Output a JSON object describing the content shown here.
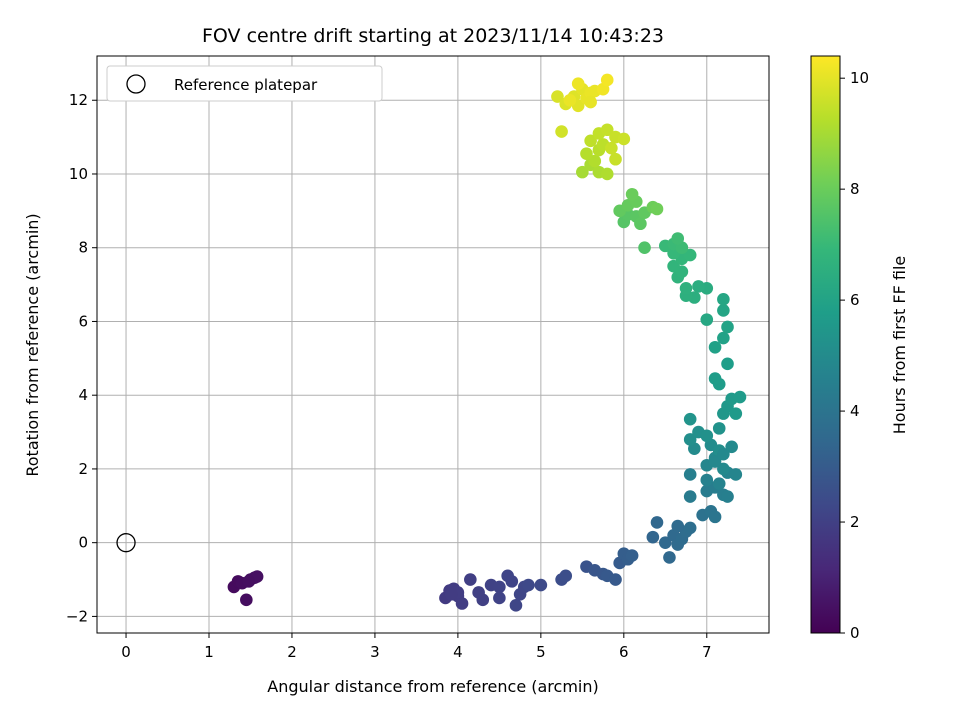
{
  "chart_data": {
    "type": "scatter",
    "title": "FOV centre drift starting at 2023/11/14 10:43:23",
    "xlabel": "Angular distance from reference (arcmin)",
    "ylabel": "Rotation from reference (arcmin)",
    "xlim": [
      -0.35,
      7.75
    ],
    "ylim": [
      -2.45,
      13.2
    ],
    "xticks": [
      0,
      1,
      2,
      3,
      4,
      5,
      6,
      7
    ],
    "yticks": [
      -2,
      0,
      2,
      4,
      6,
      8,
      10,
      12
    ],
    "grid": true,
    "legend": {
      "position": "upper-left",
      "entries": [
        {
          "label": "Reference platepar",
          "marker": "open-circle"
        }
      ]
    },
    "reference_point": {
      "x": 0,
      "y": 0
    },
    "colorbar": {
      "label": "Hours from first FF file",
      "range": [
        0,
        10.4
      ],
      "ticks": [
        0,
        2,
        4,
        6,
        8,
        10
      ],
      "colormap": "viridis",
      "stops": [
        "#440154",
        "#482878",
        "#3e4989",
        "#31688e",
        "#26828e",
        "#1f9e89",
        "#35b779",
        "#6ece58",
        "#b5de2b",
        "#fde725"
      ]
    },
    "points": [
      {
        "x": 1.3,
        "y": -1.2,
        "c": 0.3
      },
      {
        "x": 1.35,
        "y": -1.05,
        "c": 0.3
      },
      {
        "x": 1.4,
        "y": -1.1,
        "c": 0.35
      },
      {
        "x": 1.45,
        "y": -1.55,
        "c": 0.35
      },
      {
        "x": 1.5,
        "y": -1.0,
        "c": 0.4
      },
      {
        "x": 1.55,
        "y": -0.95,
        "c": 0.4
      },
      {
        "x": 1.58,
        "y": -0.92,
        "c": 0.45
      },
      {
        "x": 1.48,
        "y": -1.05,
        "c": 0.4
      },
      {
        "x": 3.85,
        "y": -1.5,
        "c": 1.8
      },
      {
        "x": 3.9,
        "y": -1.3,
        "c": 1.8
      },
      {
        "x": 3.95,
        "y": -1.25,
        "c": 1.85
      },
      {
        "x": 4.0,
        "y": -1.45,
        "c": 1.85
      },
      {
        "x": 4.05,
        "y": -1.65,
        "c": 1.9
      },
      {
        "x": 4.0,
        "y": -1.35,
        "c": 1.9
      },
      {
        "x": 3.92,
        "y": -1.4,
        "c": 1.85
      },
      {
        "x": 4.15,
        "y": -1.0,
        "c": 1.95
      },
      {
        "x": 4.25,
        "y": -1.35,
        "c": 2.0
      },
      {
        "x": 4.3,
        "y": -1.55,
        "c": 2.0
      },
      {
        "x": 4.4,
        "y": -1.15,
        "c": 2.05
      },
      {
        "x": 4.5,
        "y": -1.2,
        "c": 2.1
      },
      {
        "x": 4.5,
        "y": -1.5,
        "c": 2.1
      },
      {
        "x": 4.6,
        "y": -0.9,
        "c": 2.15
      },
      {
        "x": 4.65,
        "y": -1.05,
        "c": 2.15
      },
      {
        "x": 4.7,
        "y": -1.7,
        "c": 2.2
      },
      {
        "x": 4.75,
        "y": -1.4,
        "c": 2.2
      },
      {
        "x": 4.8,
        "y": -1.2,
        "c": 2.25
      },
      {
        "x": 4.85,
        "y": -1.15,
        "c": 2.3
      },
      {
        "x": 5.0,
        "y": -1.15,
        "c": 2.35
      },
      {
        "x": 5.25,
        "y": -1.0,
        "c": 2.45
      },
      {
        "x": 5.3,
        "y": -0.9,
        "c": 2.5
      },
      {
        "x": 5.55,
        "y": -0.65,
        "c": 2.7
      },
      {
        "x": 5.65,
        "y": -0.75,
        "c": 2.8
      },
      {
        "x": 5.75,
        "y": -0.85,
        "c": 2.85
      },
      {
        "x": 5.8,
        "y": -0.9,
        "c": 2.9
      },
      {
        "x": 5.9,
        "y": -1.0,
        "c": 2.95
      },
      {
        "x": 5.95,
        "y": -0.55,
        "c": 3.0
      },
      {
        "x": 6.0,
        "y": -0.3,
        "c": 3.1
      },
      {
        "x": 6.05,
        "y": -0.45,
        "c": 3.1
      },
      {
        "x": 6.1,
        "y": -0.35,
        "c": 3.15
      },
      {
        "x": 6.35,
        "y": 0.15,
        "c": 3.4
      },
      {
        "x": 6.4,
        "y": 0.55,
        "c": 3.45
      },
      {
        "x": 6.5,
        "y": 0.0,
        "c": 3.5
      },
      {
        "x": 6.55,
        "y": -0.4,
        "c": 3.5
      },
      {
        "x": 6.6,
        "y": 0.2,
        "c": 3.55
      },
      {
        "x": 6.65,
        "y": -0.05,
        "c": 3.6
      },
      {
        "x": 6.7,
        "y": 0.1,
        "c": 3.65
      },
      {
        "x": 6.75,
        "y": 0.3,
        "c": 3.7
      },
      {
        "x": 6.8,
        "y": 0.4,
        "c": 3.75
      },
      {
        "x": 6.65,
        "y": 0.45,
        "c": 3.6
      },
      {
        "x": 6.95,
        "y": 0.75,
        "c": 3.9
      },
      {
        "x": 7.05,
        "y": 0.85,
        "c": 4.0
      },
      {
        "x": 7.1,
        "y": 0.7,
        "c": 4.05
      },
      {
        "x": 6.8,
        "y": 1.25,
        "c": 4.3
      },
      {
        "x": 7.0,
        "y": 1.4,
        "c": 4.35
      },
      {
        "x": 7.1,
        "y": 1.5,
        "c": 4.4
      },
      {
        "x": 7.2,
        "y": 1.3,
        "c": 4.45
      },
      {
        "x": 7.25,
        "y": 1.25,
        "c": 4.5
      },
      {
        "x": 6.8,
        "y": 1.85,
        "c": 4.5
      },
      {
        "x": 7.0,
        "y": 1.7,
        "c": 4.6
      },
      {
        "x": 7.15,
        "y": 1.6,
        "c": 4.65
      },
      {
        "x": 7.25,
        "y": 1.9,
        "c": 4.7
      },
      {
        "x": 7.35,
        "y": 1.85,
        "c": 4.75
      },
      {
        "x": 7.0,
        "y": 2.1,
        "c": 4.8
      },
      {
        "x": 7.1,
        "y": 2.3,
        "c": 4.85
      },
      {
        "x": 7.2,
        "y": 2.0,
        "c": 4.9
      },
      {
        "x": 7.3,
        "y": 2.6,
        "c": 4.95
      },
      {
        "x": 6.85,
        "y": 2.55,
        "c": 5.0
      },
      {
        "x": 7.05,
        "y": 2.65,
        "c": 5.05
      },
      {
        "x": 7.15,
        "y": 2.5,
        "c": 5.1
      },
      {
        "x": 6.8,
        "y": 2.8,
        "c": 5.15
      },
      {
        "x": 6.9,
        "y": 3.0,
        "c": 5.2
      },
      {
        "x": 7.0,
        "y": 2.9,
        "c": 5.25
      },
      {
        "x": 7.15,
        "y": 3.1,
        "c": 5.3
      },
      {
        "x": 6.8,
        "y": 3.35,
        "c": 5.35
      },
      {
        "x": 7.1,
        "y": 2.2,
        "c": 4.85
      },
      {
        "x": 7.2,
        "y": 2.4,
        "c": 4.9
      },
      {
        "x": 7.2,
        "y": 3.5,
        "c": 5.5
      },
      {
        "x": 7.25,
        "y": 3.7,
        "c": 5.55
      },
      {
        "x": 7.3,
        "y": 3.9,
        "c": 5.6
      },
      {
        "x": 7.4,
        "y": 3.95,
        "c": 5.65
      },
      {
        "x": 7.35,
        "y": 3.5,
        "c": 5.6
      },
      {
        "x": 7.15,
        "y": 4.3,
        "c": 5.7
      },
      {
        "x": 7.1,
        "y": 4.45,
        "c": 5.75
      },
      {
        "x": 7.25,
        "y": 4.85,
        "c": 5.8
      },
      {
        "x": 7.1,
        "y": 5.3,
        "c": 5.9
      },
      {
        "x": 7.2,
        "y": 5.55,
        "c": 5.95
      },
      {
        "x": 7.25,
        "y": 5.85,
        "c": 6.0
      },
      {
        "x": 7.2,
        "y": 6.3,
        "c": 6.1
      },
      {
        "x": 7.2,
        "y": 6.6,
        "c": 6.15
      },
      {
        "x": 7.0,
        "y": 6.05,
        "c": 6.2
      },
      {
        "x": 7.0,
        "y": 6.9,
        "c": 6.4
      },
      {
        "x": 6.9,
        "y": 6.95,
        "c": 6.45
      },
      {
        "x": 6.85,
        "y": 6.65,
        "c": 6.5
      },
      {
        "x": 6.75,
        "y": 6.7,
        "c": 6.55
      },
      {
        "x": 6.75,
        "y": 6.9,
        "c": 6.6
      },
      {
        "x": 6.65,
        "y": 7.2,
        "c": 6.7
      },
      {
        "x": 6.7,
        "y": 7.35,
        "c": 6.75
      },
      {
        "x": 6.6,
        "y": 7.5,
        "c": 6.8
      },
      {
        "x": 6.7,
        "y": 7.7,
        "c": 6.85
      },
      {
        "x": 6.8,
        "y": 7.8,
        "c": 6.9
      },
      {
        "x": 6.6,
        "y": 7.85,
        "c": 6.95
      },
      {
        "x": 6.5,
        "y": 8.05,
        "c": 7.0
      },
      {
        "x": 6.6,
        "y": 8.1,
        "c": 7.05
      },
      {
        "x": 6.7,
        "y": 8.0,
        "c": 7.1
      },
      {
        "x": 6.65,
        "y": 8.25,
        "c": 7.15
      },
      {
        "x": 6.25,
        "y": 8.0,
        "c": 7.5
      },
      {
        "x": 6.0,
        "y": 8.7,
        "c": 7.6
      },
      {
        "x": 6.05,
        "y": 8.9,
        "c": 7.65
      },
      {
        "x": 6.15,
        "y": 8.85,
        "c": 7.7
      },
      {
        "x": 6.2,
        "y": 8.65,
        "c": 7.75
      },
      {
        "x": 6.25,
        "y": 8.95,
        "c": 7.8
      },
      {
        "x": 5.95,
        "y": 9.0,
        "c": 7.85
      },
      {
        "x": 6.05,
        "y": 9.15,
        "c": 7.9
      },
      {
        "x": 6.15,
        "y": 9.25,
        "c": 7.95
      },
      {
        "x": 6.1,
        "y": 9.45,
        "c": 8.0
      },
      {
        "x": 6.35,
        "y": 9.1,
        "c": 8.05
      },
      {
        "x": 6.4,
        "y": 9.05,
        "c": 8.1
      },
      {
        "x": 5.5,
        "y": 10.05,
        "c": 9.0
      },
      {
        "x": 5.6,
        "y": 10.25,
        "c": 9.05
      },
      {
        "x": 5.7,
        "y": 10.05,
        "c": 9.1
      },
      {
        "x": 5.8,
        "y": 10.0,
        "c": 9.15
      },
      {
        "x": 5.65,
        "y": 10.35,
        "c": 9.2
      },
      {
        "x": 5.55,
        "y": 10.55,
        "c": 9.25
      },
      {
        "x": 5.7,
        "y": 10.65,
        "c": 9.3
      },
      {
        "x": 5.75,
        "y": 10.8,
        "c": 9.35
      },
      {
        "x": 5.6,
        "y": 10.9,
        "c": 9.4
      },
      {
        "x": 5.7,
        "y": 11.1,
        "c": 9.45
      },
      {
        "x": 5.8,
        "y": 11.2,
        "c": 9.5
      },
      {
        "x": 5.9,
        "y": 11.0,
        "c": 9.55
      },
      {
        "x": 5.9,
        "y": 10.4,
        "c": 9.55
      },
      {
        "x": 6.0,
        "y": 10.95,
        "c": 9.6
      },
      {
        "x": 5.85,
        "y": 10.7,
        "c": 9.55
      },
      {
        "x": 5.25,
        "y": 11.15,
        "c": 9.7
      },
      {
        "x": 5.2,
        "y": 12.1,
        "c": 9.8
      },
      {
        "x": 5.3,
        "y": 11.9,
        "c": 9.85
      },
      {
        "x": 5.4,
        "y": 12.1,
        "c": 9.9
      },
      {
        "x": 5.45,
        "y": 11.85,
        "c": 9.95
      },
      {
        "x": 5.5,
        "y": 12.3,
        "c": 10.0
      },
      {
        "x": 5.55,
        "y": 12.05,
        "c": 10.05
      },
      {
        "x": 5.6,
        "y": 12.2,
        "c": 10.1
      },
      {
        "x": 5.65,
        "y": 12.25,
        "c": 10.1
      },
      {
        "x": 5.45,
        "y": 12.45,
        "c": 10.15
      },
      {
        "x": 5.75,
        "y": 12.3,
        "c": 10.2
      },
      {
        "x": 5.8,
        "y": 12.55,
        "c": 10.25
      },
      {
        "x": 5.35,
        "y": 12.0,
        "c": 10.1
      },
      {
        "x": 5.6,
        "y": 11.95,
        "c": 10.05
      }
    ]
  }
}
